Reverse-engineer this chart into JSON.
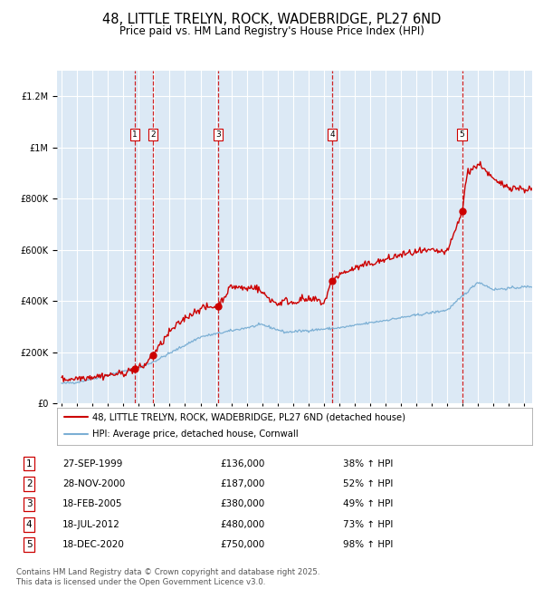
{
  "title": "48, LITTLE TRELYN, ROCK, WADEBRIDGE, PL27 6ND",
  "subtitle": "Price paid vs. HM Land Registry's House Price Index (HPI)",
  "title_fontsize": 10.5,
  "subtitle_fontsize": 8.5,
  "bg_color": "#dce9f5",
  "grid_color": "#ffffff",
  "red_line_color": "#cc0000",
  "blue_line_color": "#7bafd4",
  "dashed_vline_color": "#cc0000",
  "purchases": [
    {
      "label": "1",
      "date_x": 1999.74,
      "price": 136000,
      "date_str": "27-SEP-1999",
      "hpi_pct": "38%"
    },
    {
      "label": "2",
      "date_x": 2000.91,
      "price": 187000,
      "date_str": "28-NOV-2000",
      "hpi_pct": "52%"
    },
    {
      "label": "3",
      "date_x": 2005.13,
      "price": 380000,
      "date_str": "18-FEB-2005",
      "hpi_pct": "49%"
    },
    {
      "label": "4",
      "date_x": 2012.54,
      "price": 480000,
      "date_str": "18-JUL-2012",
      "hpi_pct": "73%"
    },
    {
      "label": "5",
      "date_x": 2020.96,
      "price": 750000,
      "date_str": "18-DEC-2020",
      "hpi_pct": "98%"
    }
  ],
  "ylim": [
    0,
    1300000
  ],
  "xlim_start": 1994.7,
  "xlim_end": 2025.5,
  "footer": "Contains HM Land Registry data © Crown copyright and database right 2025.\nThis data is licensed under the Open Government Licence v3.0.",
  "legend_line1": "48, LITTLE TRELYN, ROCK, WADEBRIDGE, PL27 6ND (detached house)",
  "legend_line2": "HPI: Average price, detached house, Cornwall"
}
